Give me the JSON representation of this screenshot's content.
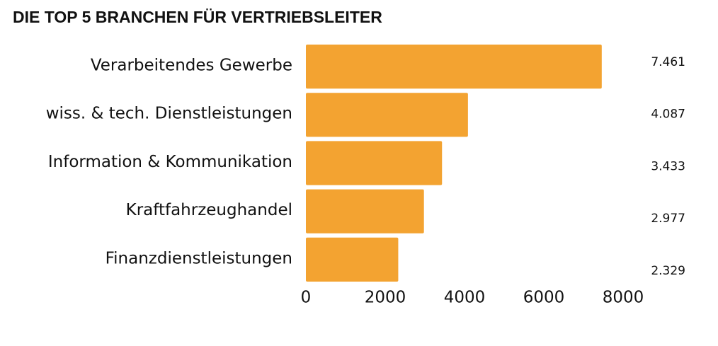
{
  "chart_data": {
    "type": "bar",
    "orientation": "horizontal",
    "title": "DIE TOP 5 BRANCHEN FÜR VERTRIEBSLEITER",
    "categories": [
      "Verarbeitendes Gewerbe",
      "wiss. & tech. Dienstleistungen",
      "Information & Kommunikation",
      "Kraftfahrzeughandel",
      "Finanzdienstleistungen"
    ],
    "values": [
      7461,
      4087,
      3433,
      2977,
      2329
    ],
    "value_labels": [
      "7.461",
      "4.087",
      "3.433",
      "2.977",
      "2.329"
    ],
    "color": "#f3a331",
    "xlim": [
      0,
      8000
    ],
    "xticks": [
      0,
      2000,
      4000,
      6000,
      8000
    ],
    "grid": false
  }
}
